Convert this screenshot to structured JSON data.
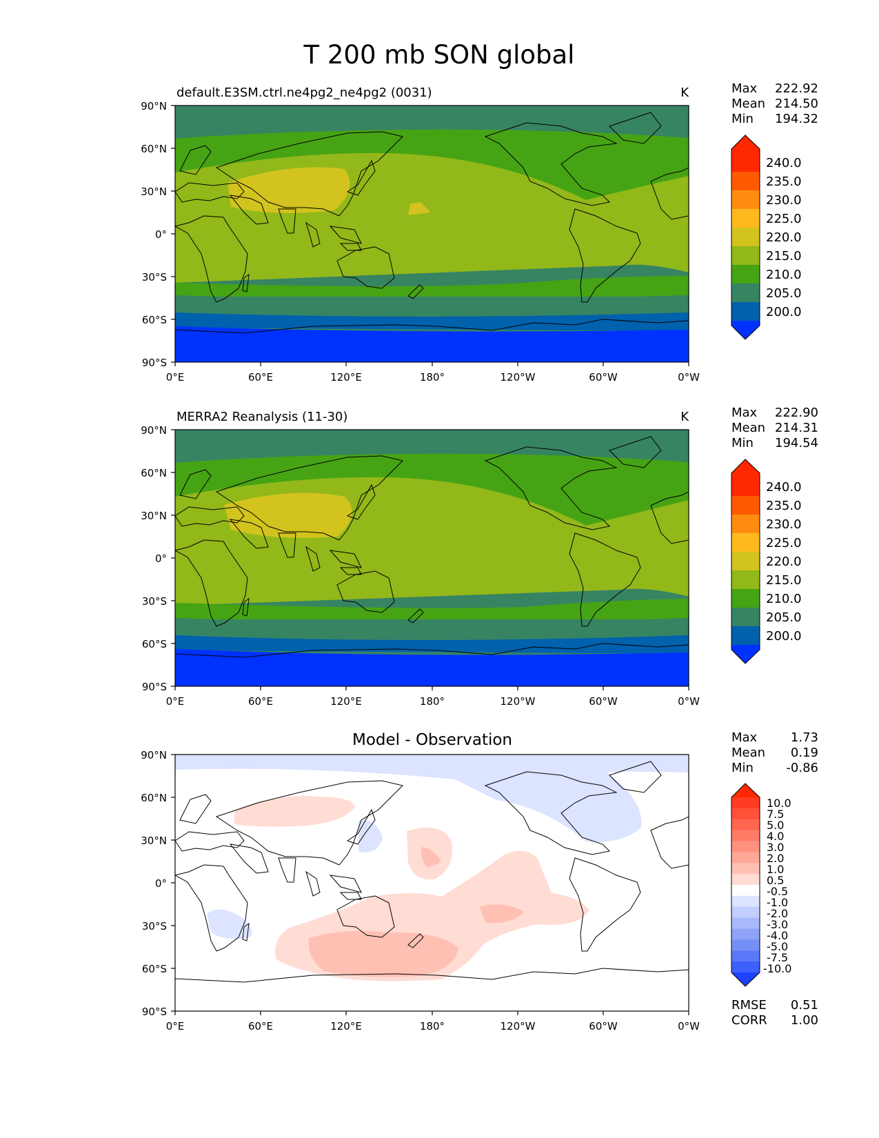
{
  "figure": {
    "title": "T 200 mb SON global"
  },
  "chart_data": [
    {
      "type": "heatmap",
      "map": "global-lat-lon",
      "title": "default.E3SM.ctrl.ne4pg2_ne4pg2 (0031)",
      "units": "K",
      "stats": {
        "max_label": "Max",
        "max": "222.92",
        "mean_label": "Mean",
        "mean": "214.50",
        "min_label": "Min",
        "min": "194.32"
      },
      "xticks": [
        "0°E",
        "60°E",
        "120°E",
        "180°",
        "120°W",
        "60°W",
        "0°W"
      ],
      "yticks": [
        "90°N",
        "60°N",
        "30°N",
        "0°",
        "30°S",
        "60°S",
        "90°S"
      ],
      "colorbar": {
        "levels": [
          "240.0",
          "235.0",
          "230.0",
          "225.0",
          "220.0",
          "215.0",
          "210.0",
          "205.0",
          "200.0"
        ],
        "colors": [
          "#ff2800",
          "#ff5a00",
          "#ff8c10",
          "#ffb91e",
          "#d2c31e",
          "#92b81a",
          "#46a314",
          "#378463",
          "#0061ad",
          "#0032ff"
        ]
      },
      "contour_bands": {
        "lat": [
          90,
          75,
          70,
          60,
          50,
          40,
          35,
          20,
          0,
          -20,
          -33,
          -40,
          -48,
          -55,
          -62,
          -65,
          -90
        ],
        "band_0_k": [
          205,
          207,
          210,
          212,
          214,
          216,
          217,
          218,
          218,
          217,
          214,
          212,
          209,
          206,
          203,
          200,
          198
        ],
        "hot_spot": {
          "center_lat": 30,
          "center_lon": 90,
          "value_k": 221
        }
      }
    },
    {
      "type": "heatmap",
      "map": "global-lat-lon",
      "title": "MERRA2 Reanalysis (11-30)",
      "units": "K",
      "stats": {
        "max_label": "Max",
        "max": "222.90",
        "mean_label": "Mean",
        "mean": "214.31",
        "min_label": "Min",
        "min": "194.54"
      },
      "xticks": [
        "0°E",
        "60°E",
        "120°E",
        "180°",
        "120°W",
        "60°W",
        "0°W"
      ],
      "yticks": [
        "90°N",
        "60°N",
        "30°N",
        "0°",
        "30°S",
        "60°S",
        "90°S"
      ],
      "colorbar": {
        "levels": [
          "240.0",
          "235.0",
          "230.0",
          "225.0",
          "220.0",
          "215.0",
          "210.0",
          "205.0",
          "200.0"
        ],
        "colors": [
          "#ff2800",
          "#ff5a00",
          "#ff8c10",
          "#ffb91e",
          "#d2c31e",
          "#92b81a",
          "#46a314",
          "#378463",
          "#0061ad",
          "#0032ff"
        ]
      }
    },
    {
      "type": "heatmap",
      "map": "global-lat-lon",
      "title": "Model - Observation",
      "units": "K",
      "stats": {
        "max_label": "Max",
        "max": "1.73",
        "mean_label": "Mean",
        "mean": "0.19",
        "min_label": "Min",
        "min": "-0.86"
      },
      "metrics": {
        "rmse_label": "RMSE",
        "rmse": "0.51",
        "corr_label": "CORR",
        "corr": "1.00"
      },
      "xticks": [
        "0°E",
        "60°E",
        "120°E",
        "180°",
        "120°W",
        "60°W",
        "0°W"
      ],
      "yticks": [
        "90°N",
        "60°N",
        "30°N",
        "0°",
        "30°S",
        "60°S",
        "90°S"
      ],
      "colorbar": {
        "levels": [
          "10.0",
          "7.5",
          "5.0",
          "4.0",
          "3.0",
          "2.0",
          "1.0",
          "0.5",
          "-0.5",
          "-1.0",
          "-2.0",
          "-3.0",
          "-4.0",
          "-5.0",
          "-7.5",
          "-10.0"
        ],
        "colors": [
          "#ff2800",
          "#ff3c22",
          "#ff5038",
          "#ff6650",
          "#ff7b66",
          "#ff917e",
          "#ffa898",
          "#ffc0b4",
          "#ffdcd4",
          "#ffffff",
          "#dce4ff",
          "#c2cfff",
          "#a8b9fa",
          "#8ea3f7",
          "#7490f5",
          "#5a78f8",
          "#3e60fa",
          "#1e40ff"
        ]
      },
      "anomaly_regions": [
        {
          "sign": "+",
          "value_k": 0.7,
          "lat": 40,
          "lon": 70,
          "desc": "central Asia"
        },
        {
          "sign": "+",
          "value_k": 0.7,
          "lat": 22,
          "lon": 178,
          "desc": "North Pacific"
        },
        {
          "sign": "+",
          "value_k": 1.2,
          "lat": 22,
          "lon": 178,
          "desc": "North Pacific core"
        },
        {
          "sign": "+",
          "value_k": 0.7,
          "lat": -22,
          "lon": 225,
          "desc": "South Pacific"
        },
        {
          "sign": "+",
          "value_k": 0.7,
          "lat": -45,
          "lon": 145,
          "desc": "Southern Ocean south of Australia"
        },
        {
          "sign": "+",
          "value_k": 1.5,
          "lat": -45,
          "lon": 145,
          "desc": "Southern Ocean core"
        },
        {
          "sign": "-",
          "value_k": -0.7,
          "lat": 75,
          "lon": 270,
          "desc": "Arctic / North America"
        },
        {
          "sign": "-",
          "value_k": -0.7,
          "lat": 25,
          "lon": 128,
          "desc": "East China Sea"
        },
        {
          "sign": "-",
          "value_k": -0.7,
          "lat": -25,
          "lon": 40,
          "desc": "Madagascar"
        }
      ]
    }
  ]
}
